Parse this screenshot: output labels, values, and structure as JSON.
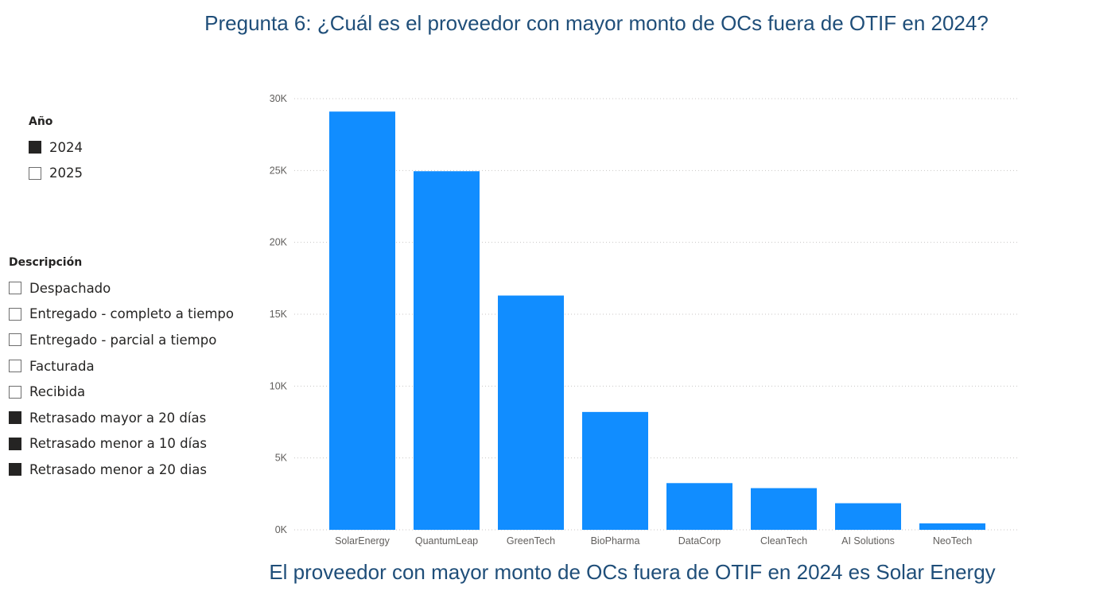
{
  "title": "Pregunta 6: ¿Cuál es el proveedor con mayor monto de OCs fuera de OTIF en 2024?",
  "footer": "El proveedor con mayor monto de OCs fuera de OTIF en 2024 es Solar Energy",
  "colors": {
    "bar": "#118dff",
    "title": "#1f4e79",
    "checked": "#252423"
  },
  "slicers": {
    "year": {
      "header": "Año",
      "items": [
        {
          "label": "2024",
          "checked": true
        },
        {
          "label": "2025",
          "checked": false
        }
      ]
    },
    "description": {
      "header": "Descripción",
      "items": [
        {
          "label": "Despachado",
          "checked": false
        },
        {
          "label": "Entregado - completo a tiempo",
          "checked": false
        },
        {
          "label": "Entregado - parcial a tiempo",
          "checked": false
        },
        {
          "label": "Facturada",
          "checked": false
        },
        {
          "label": "Recibida",
          "checked": false
        },
        {
          "label": "Retrasado mayor a 20 días",
          "checked": true
        },
        {
          "label": "Retrasado menor a 10 días",
          "checked": true
        },
        {
          "label": "Retrasado menor a 20 dias",
          "checked": true
        }
      ]
    }
  },
  "chart_data": {
    "type": "bar",
    "categories": [
      "SolarEnergy",
      "QuantumLeap",
      "GreenTech",
      "BioPharma",
      "DataCorp",
      "CleanTech",
      "AI Solutions",
      "NeoTech"
    ],
    "values": [
      29100,
      24950,
      16300,
      8200,
      3250,
      2900,
      1850,
      450
    ],
    "ylim": [
      0,
      30000
    ],
    "yticks": [
      {
        "value": 0,
        "label": "0K"
      },
      {
        "value": 5000,
        "label": "5K"
      },
      {
        "value": 10000,
        "label": "10K"
      },
      {
        "value": 15000,
        "label": "15K"
      },
      {
        "value": 20000,
        "label": "20K"
      },
      {
        "value": 25000,
        "label": "25K"
      },
      {
        "value": 30000,
        "label": "30K"
      }
    ],
    "grid": true,
    "legend": false
  }
}
